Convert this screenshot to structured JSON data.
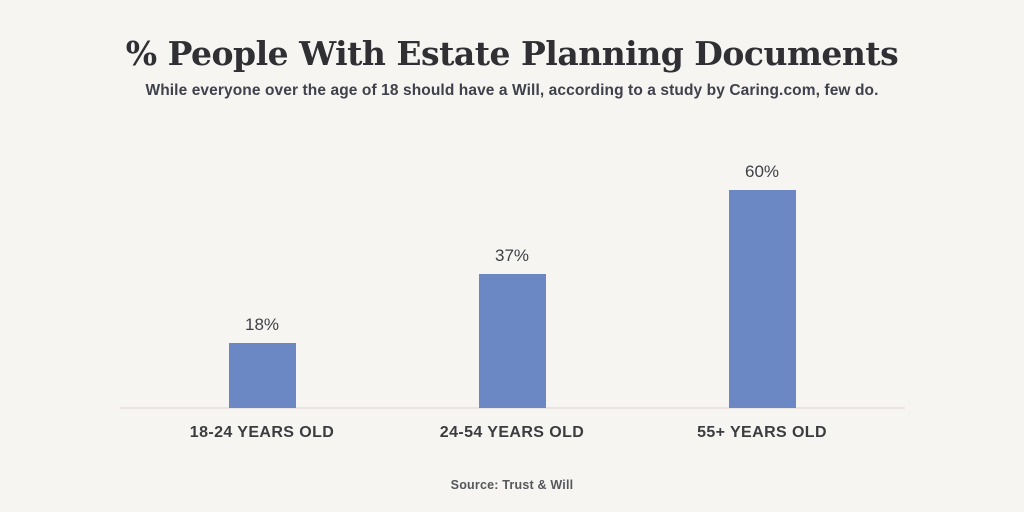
{
  "page": {
    "background_color": "#f7f5f2"
  },
  "header": {
    "title": "% People With Estate Planning Documents",
    "subtitle": "While everyone over the age of 18 should have a Will, according to a study by Caring.com, few do."
  },
  "chart_data": {
    "type": "bar",
    "title": "% People With Estate Planning Documents",
    "subtitle": "While everyone over the age of 18 should have a Will, according to a study by Caring.com, few do.",
    "categories": [
      "18-24 YEARS OLD",
      "24-54 YEARS OLD",
      "55+ YEARS OLD"
    ],
    "values": [
      18,
      37,
      60
    ],
    "value_labels": [
      "18%",
      "37%",
      "60%"
    ],
    "xlabel": "",
    "ylabel": "",
    "ylim": [
      0,
      66
    ],
    "grid": false,
    "legend": false,
    "bar_color": "#6b88c4",
    "baseline_color": "#eae3e0",
    "value_label_color": "#3f4147",
    "category_label_color": "#3b3c40"
  },
  "footer": {
    "source": "Source: Trust & Will"
  }
}
